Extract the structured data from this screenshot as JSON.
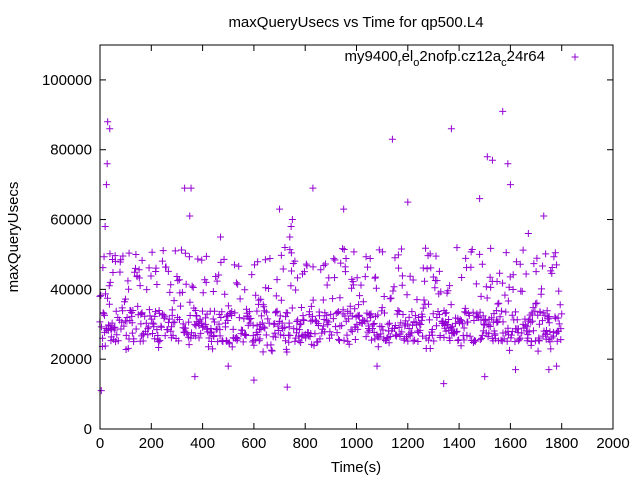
{
  "chart_data": {
    "type": "scatter",
    "title": "maxQueryUsecs vs Time for qp500.L4",
    "xlabel": "Time(s)",
    "ylabel": "maxQueryUsecs",
    "xlim": [
      0,
      2000
    ],
    "ylim": [
      0,
      110000
    ],
    "xticks": [
      0,
      200,
      400,
      600,
      800,
      1000,
      1200,
      1400,
      1600,
      1800,
      2000
    ],
    "yticks": [
      0,
      20000,
      40000,
      60000,
      80000,
      100000
    ],
    "grid": false,
    "legend_position": "top-right",
    "marker": "+",
    "color": "#9400d3",
    "legend": {
      "base": "my9400",
      "sub1": "r",
      "mid1": "el",
      "sub2": "o",
      "mid2": "2nofp.cz12a",
      "sub3": "c",
      "tail": "24r64"
    },
    "series": [
      {
        "name": "my9400_rel_o2nofp.cz12a_c24r64",
        "notable_points": [
          [
            5,
            11000
          ],
          [
            10,
            26000
          ],
          [
            15,
            33000
          ],
          [
            20,
            58000
          ],
          [
            25,
            70000
          ],
          [
            28,
            76000
          ],
          [
            30,
            88000
          ],
          [
            38,
            86000
          ],
          [
            40,
            42000
          ],
          [
            60,
            48000
          ],
          [
            140,
            50000
          ],
          [
            330,
            69000
          ],
          [
            350,
            61000
          ],
          [
            355,
            69000
          ],
          [
            370,
            15000
          ],
          [
            470,
            55000
          ],
          [
            500,
            18000
          ],
          [
            600,
            14000
          ],
          [
            700,
            63000
          ],
          [
            730,
            12000
          ],
          [
            740,
            55000
          ],
          [
            745,
            58000
          ],
          [
            750,
            60000
          ],
          [
            830,
            69000
          ],
          [
            950,
            63000
          ],
          [
            1080,
            18000
          ],
          [
            1140,
            83000
          ],
          [
            1200,
            65000
          ],
          [
            1340,
            13000
          ],
          [
            1370,
            86000
          ],
          [
            1480,
            66000
          ],
          [
            1500,
            15000
          ],
          [
            1510,
            78000
          ],
          [
            1530,
            77000
          ],
          [
            1570,
            91000
          ],
          [
            1590,
            76000
          ],
          [
            1600,
            70000
          ],
          [
            1620,
            17000
          ],
          [
            1670,
            56000
          ],
          [
            1730,
            61000
          ],
          [
            1750,
            17000
          ],
          [
            1780,
            18000
          ]
        ],
        "dense_band": {
          "x_start": 0,
          "x_end": 1800,
          "x_step": 3,
          "y_min": 20000,
          "y_max": 50000,
          "y_center": 32000
        }
      }
    ]
  }
}
